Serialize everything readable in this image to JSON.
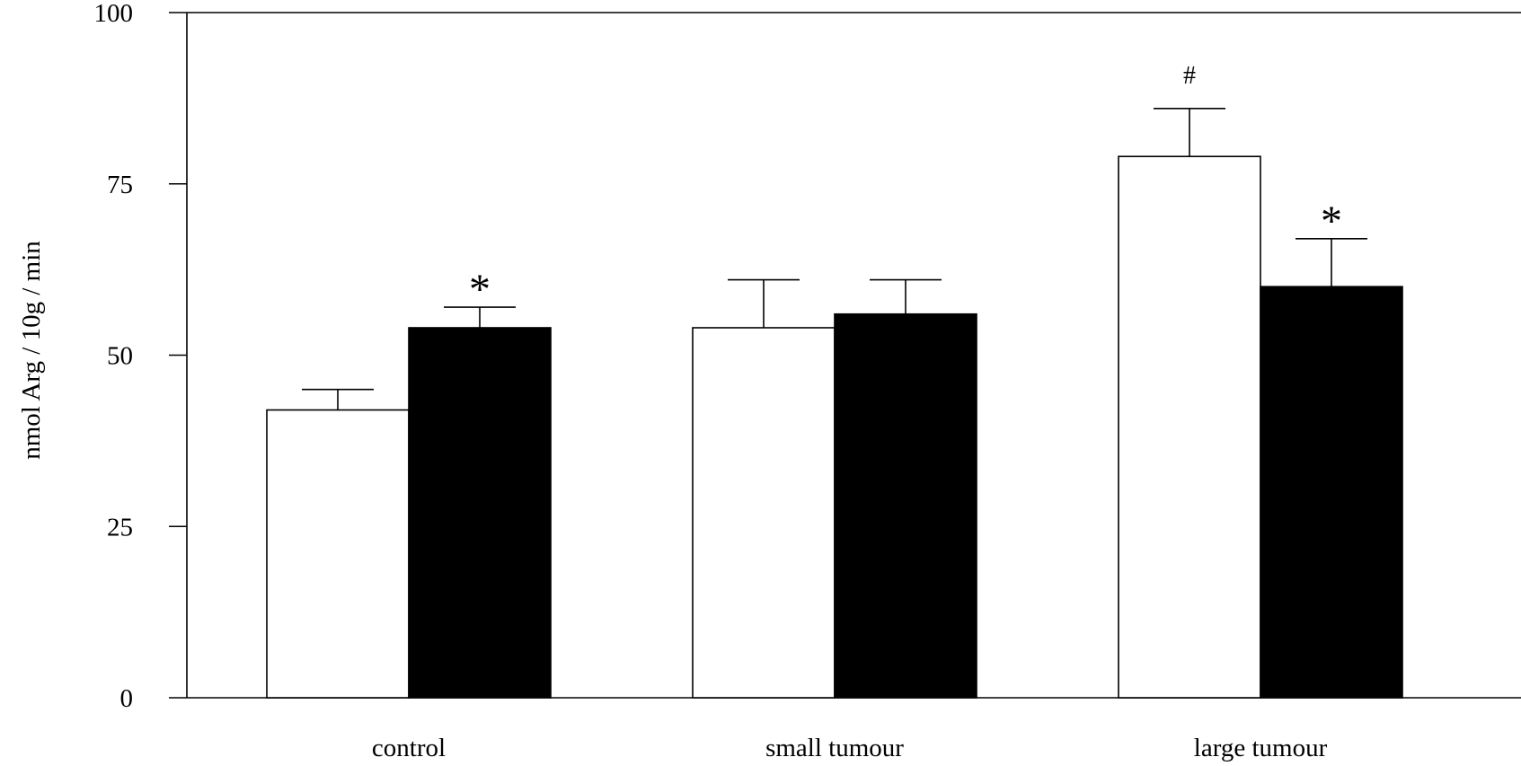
{
  "chart_data": {
    "type": "bar",
    "title": "",
    "xlabel": "",
    "ylabel": "nmol Arg / 10g / min",
    "ylim": [
      0,
      100
    ],
    "yticks": [
      "0",
      "25",
      "50",
      "75",
      "100"
    ],
    "categories": [
      "control",
      "small tumour",
      "large tumour"
    ],
    "series": [
      {
        "fill": "#ffffff",
        "values": [
          42,
          54,
          79
        ],
        "errors": [
          3,
          7,
          7
        ],
        "annotations": [
          "",
          "",
          "#"
        ]
      },
      {
        "fill": "#000000",
        "values": [
          54,
          56,
          60
        ],
        "errors": [
          3,
          5,
          7
        ],
        "annotations": [
          "*",
          "",
          "*"
        ]
      }
    ],
    "grid": false,
    "legend": "none"
  }
}
